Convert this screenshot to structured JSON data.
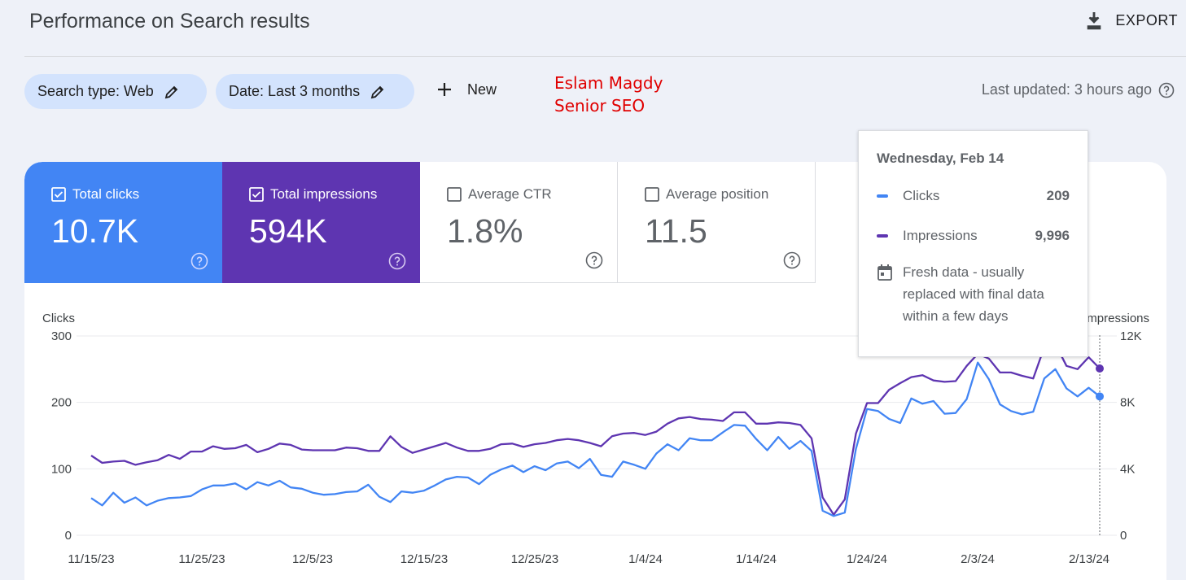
{
  "header": {
    "title": "Performance on Search results",
    "export_label": "EXPORT"
  },
  "filters": {
    "search_type": "Search type: Web",
    "date": "Date: Last 3 months",
    "new_label": "New"
  },
  "watermark": {
    "line1": "Eslam Magdy",
    "line2": "Senior SEO"
  },
  "last_updated": "Last updated: 3 hours ago",
  "metrics": [
    {
      "label": "Total clicks",
      "value": "10.7K",
      "checked": true
    },
    {
      "label": "Total impressions",
      "value": "594K",
      "checked": true
    },
    {
      "label": "Average CTR",
      "value": "1.8%",
      "checked": false
    },
    {
      "label": "Average position",
      "value": "11.5",
      "checked": false
    }
  ],
  "tooltip": {
    "date": "Wednesday, Feb 14",
    "clicks_label": "Clicks",
    "clicks_value": "209",
    "impressions_label": "Impressions",
    "impressions_value": "9,996",
    "note": "Fresh data - usually replaced with final data within a few days"
  },
  "colors": {
    "clicks": "#4285f4",
    "impressions": "#5e35b1",
    "chip": "#d3e3fd",
    "watermark": "#e00000"
  },
  "icons": [
    "download-icon",
    "pencil-icon",
    "plus-icon",
    "help-circle-icon",
    "checkbox-checked-icon",
    "checkbox-empty-icon",
    "calendar-icon"
  ],
  "chart_data": {
    "type": "line",
    "left_axis_label": "Clicks",
    "right_axis_label": "Impressions",
    "left_ticks": [
      "0",
      "100",
      "200",
      "300"
    ],
    "right_ticks": [
      "0",
      "4K",
      "8K",
      "12K"
    ],
    "ylim_left": [
      0,
      300
    ],
    "ylim_right": [
      0,
      12000
    ],
    "x_tick_labels": [
      "11/15/23",
      "11/25/23",
      "12/5/23",
      "12/15/23",
      "12/25/23",
      "1/4/24",
      "1/14/24",
      "1/24/24",
      "2/3/24",
      "2/13/24"
    ],
    "grid": true,
    "series": [
      {
        "name": "Clicks",
        "axis": "left",
        "values": [
          56,
          45,
          64,
          49,
          57,
          45,
          52,
          56,
          57,
          59,
          69,
          75,
          75,
          78,
          69,
          80,
          75,
          82,
          72,
          70,
          64,
          61,
          62,
          65,
          66,
          76,
          58,
          50,
          66,
          64,
          67,
          75,
          84,
          88,
          87,
          77,
          91,
          99,
          105,
          95,
          104,
          98,
          108,
          111,
          101,
          115,
          91,
          88,
          111,
          106,
          100,
          123,
          137,
          128,
          146,
          143,
          143,
          155,
          166,
          165,
          145,
          128,
          148,
          130,
          142,
          127,
          37,
          29,
          34,
          130,
          190,
          187,
          175,
          169,
          206,
          198,
          202,
          183,
          184,
          205,
          260,
          235,
          197,
          187,
          182,
          186,
          236,
          250,
          221,
          209,
          222,
          209
        ],
        "values_note": ""
      },
      {
        "name": "Impressions",
        "axis": "left",
        "values": [
          120,
          109,
          111,
          112,
          106,
          110,
          113,
          121,
          115,
          126,
          126,
          134,
          130,
          131,
          136,
          125,
          130,
          138,
          136,
          129,
          128,
          128,
          128,
          132,
          131,
          127,
          127,
          149,
          133,
          124,
          129,
          134,
          139,
          132,
          127,
          127,
          130,
          137,
          138,
          133,
          137,
          139,
          143,
          145,
          143,
          139,
          134,
          149,
          153,
          154,
          151,
          156,
          168,
          176,
          178,
          175,
          174,
          172,
          185,
          185,
          168,
          168,
          170,
          169,
          166,
          146,
          57,
          31,
          54,
          153,
          199,
          199,
          219,
          229,
          238,
          241,
          233,
          231,
          232,
          255,
          273,
          266,
          245,
          245,
          240,
          236,
          283,
          288,
          255,
          250,
          268,
          251
        ]
      }
    ]
  }
}
